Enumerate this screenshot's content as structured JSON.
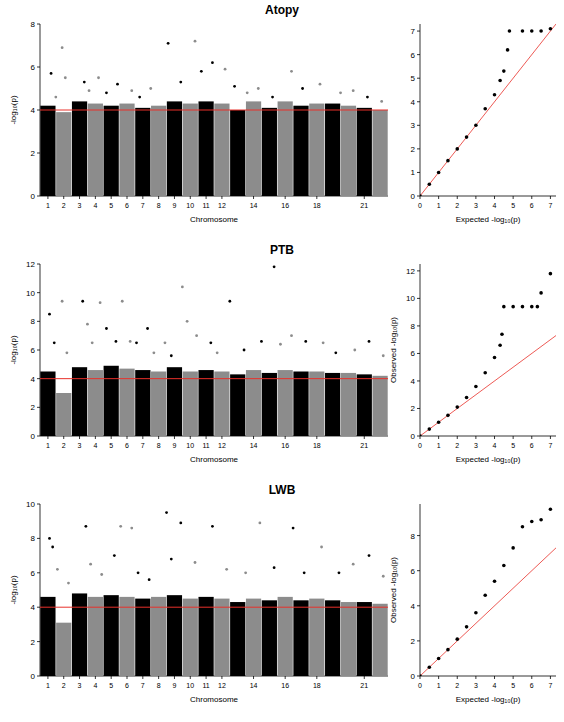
{
  "chart_data": [
    {
      "type": "manhattan",
      "title": "Atopy",
      "x_label": "Chromosome",
      "y_label": "-log₁₀(p)",
      "categories": [
        "1",
        "2",
        "3",
        "4",
        "5",
        "6",
        "7",
        "8",
        "9",
        "10",
        "11",
        "12",
        null,
        "14",
        null,
        "16",
        null,
        "18",
        null,
        null,
        "21",
        null
      ],
      "colors": [
        "#000000",
        "#8c8c8c",
        "#000000",
        "#8c8c8c",
        "#000000",
        "#8c8c8c",
        "#000000",
        "#8c8c8c",
        "#000000",
        "#8c8c8c",
        "#000000",
        "#8c8c8c",
        "#000000",
        "#8c8c8c",
        "#000000",
        "#8c8c8c",
        "#000000",
        "#8c8c8c",
        "#000000",
        "#8c8c8c",
        "#000000",
        "#8c8c8c"
      ],
      "band_top": [
        4.2,
        3.9,
        4.4,
        4.3,
        4.2,
        4.3,
        4.1,
        4.2,
        4.4,
        4.3,
        4.4,
        4.3,
        4.0,
        4.4,
        4.1,
        4.4,
        4.2,
        4.3,
        4.3,
        4.2,
        4.1,
        4.0
      ],
      "points": {
        "x": [
          1.2,
          1.5,
          1.9,
          2.1,
          3.3,
          3.6,
          4.2,
          4.7,
          5.4,
          6.3,
          6.8,
          7.5,
          8.6,
          9.4,
          10.3,
          10.7,
          11.4,
          12.2,
          12.8,
          13.6,
          14.3,
          15.2,
          16.4,
          17.1,
          18.2,
          19.5,
          20.3,
          21.2,
          22.1
        ],
        "y": [
          5.7,
          4.6,
          6.9,
          5.5,
          5.3,
          4.9,
          5.5,
          4.8,
          5.2,
          4.9,
          4.6,
          5.0,
          7.1,
          5.3,
          7.2,
          5.8,
          6.2,
          5.9,
          5.1,
          4.8,
          5.0,
          4.6,
          5.8,
          5.0,
          5.2,
          4.8,
          4.9,
          4.6,
          4.4
        ]
      },
      "threshold": 4,
      "xlim": [
        0.5,
        22.5
      ],
      "ylim": [
        0,
        8
      ],
      "yticks": [
        0,
        2,
        4,
        6,
        8
      ]
    },
    {
      "type": "qq",
      "x_label": "Expected -log₁₀(p)",
      "color": "#000000",
      "points": {
        "x": [
          0,
          0.5,
          1,
          1.5,
          2,
          2.5,
          3,
          3.5,
          4,
          4.3,
          4.5,
          4.7,
          4.8,
          5.5,
          6,
          6.5,
          7
        ],
        "y": [
          0,
          0.5,
          1,
          1.5,
          2,
          2.5,
          3,
          3.7,
          4.3,
          4.9,
          5.3,
          6.2,
          7.0,
          7.0,
          7.0,
          7.0,
          7.1
        ]
      },
      "xlim": [
        0,
        7.3
      ],
      "ylim": [
        0,
        7.3
      ],
      "xticks": [
        0,
        1,
        2,
        3,
        4,
        5,
        6,
        7
      ],
      "yticks": [
        0,
        1,
        2,
        3,
        4,
        5,
        6,
        7
      ]
    },
    {
      "type": "manhattan",
      "title": "PTB",
      "x_label": "Chromosome",
      "y_label": "-log₁₀(p)",
      "categories": [
        "1",
        "2",
        "3",
        "4",
        "5",
        "6",
        "7",
        "8",
        "9",
        "10",
        "11",
        "12",
        null,
        "14",
        null,
        "16",
        null,
        "18",
        null,
        null,
        "21",
        null
      ],
      "colors": [
        "#000000",
        "#8c8c8c",
        "#000000",
        "#8c8c8c",
        "#000000",
        "#8c8c8c",
        "#000000",
        "#8c8c8c",
        "#000000",
        "#8c8c8c",
        "#000000",
        "#8c8c8c",
        "#000000",
        "#8c8c8c",
        "#000000",
        "#8c8c8c",
        "#000000",
        "#8c8c8c",
        "#000000",
        "#8c8c8c",
        "#000000",
        "#8c8c8c"
      ],
      "band_top": [
        4.5,
        3.0,
        4.8,
        4.6,
        4.9,
        4.7,
        4.6,
        4.5,
        4.8,
        4.5,
        4.6,
        4.5,
        4.3,
        4.6,
        4.4,
        4.6,
        4.5,
        4.5,
        4.4,
        4.4,
        4.3,
        4.2
      ],
      "points": {
        "x": [
          1.1,
          1.4,
          1.9,
          2.2,
          3.2,
          3.5,
          3.8,
          4.3,
          4.7,
          5.3,
          5.7,
          6.2,
          6.6,
          7.3,
          7.7,
          8.4,
          8.8,
          9.5,
          9.8,
          10.4,
          11.3,
          11.7,
          12.5,
          13.4,
          14.5,
          15.3,
          15.7,
          16.4,
          17.3,
          18.4,
          19.2,
          20.4,
          21.3,
          22.2
        ],
        "y": [
          8.5,
          6.5,
          9.4,
          5.8,
          9.4,
          7.8,
          6.5,
          9.3,
          7.5,
          6.6,
          9.4,
          6.6,
          6.5,
          7.5,
          5.8,
          6.5,
          5.6,
          10.4,
          8.0,
          7.0,
          6.5,
          5.8,
          9.4,
          6.0,
          6.6,
          11.8,
          6.4,
          7.0,
          6.6,
          6.5,
          5.8,
          6.0,
          6.6,
          5.6
        ]
      },
      "threshold": 4,
      "xlim": [
        0.5,
        22.5
      ],
      "ylim": [
        0,
        12
      ],
      "yticks": [
        0,
        2,
        4,
        6,
        8,
        10,
        12
      ]
    },
    {
      "type": "qq",
      "x_label": "Expected -log₁₀(p)",
      "y_label": "Observed -log₁₀(p)",
      "color": "#000000",
      "points": {
        "x": [
          0,
          0.5,
          1,
          1.5,
          2,
          2.5,
          3,
          3.5,
          4,
          4.3,
          4.4,
          4.5,
          5,
          5.5,
          6,
          6.3,
          6.5,
          7
        ],
        "y": [
          0,
          0.5,
          1,
          1.5,
          2.1,
          2.8,
          3.6,
          4.6,
          5.7,
          6.6,
          7.4,
          9.4,
          9.4,
          9.4,
          9.4,
          9.4,
          10.4,
          11.8
        ]
      },
      "xlim": [
        0,
        7.3
      ],
      "ylim": [
        0,
        12.5
      ],
      "xticks": [
        0,
        1,
        2,
        3,
        4,
        5,
        6,
        7
      ],
      "yticks": [
        0,
        2,
        4,
        6,
        8,
        10,
        12
      ]
    },
    {
      "type": "manhattan",
      "title": "LWB",
      "x_label": "Chromosome",
      "y_label": "-log₁₀(p)",
      "categories": [
        "1",
        "2",
        "3",
        "4",
        "5",
        "6",
        "7",
        "8",
        "9",
        "10",
        "11",
        "12",
        null,
        "14",
        null,
        "16",
        null,
        "18",
        null,
        null,
        "21",
        null
      ],
      "colors": [
        "#000000",
        "#8c8c8c",
        "#000000",
        "#8c8c8c",
        "#000000",
        "#8c8c8c",
        "#000000",
        "#8c8c8c",
        "#000000",
        "#8c8c8c",
        "#000000",
        "#8c8c8c",
        "#000000",
        "#8c8c8c",
        "#000000",
        "#8c8c8c",
        "#000000",
        "#8c8c8c",
        "#000000",
        "#8c8c8c",
        "#000000",
        "#8c8c8c"
      ],
      "band_top": [
        4.6,
        3.1,
        4.8,
        4.6,
        4.7,
        4.6,
        4.5,
        4.6,
        4.7,
        4.5,
        4.6,
        4.5,
        4.3,
        4.5,
        4.4,
        4.6,
        4.4,
        4.5,
        4.4,
        4.3,
        4.3,
        4.2
      ],
      "points": {
        "x": [
          1.1,
          1.3,
          1.6,
          2.3,
          3.4,
          3.7,
          4.4,
          5.2,
          5.6,
          6.3,
          6.7,
          7.4,
          8.5,
          8.8,
          9.4,
          10.3,
          11.4,
          12.3,
          13.5,
          14.4,
          15.3,
          16.5,
          17.2,
          18.3,
          19.4,
          20.3,
          21.3,
          22.2
        ],
        "y": [
          8.0,
          7.5,
          6.2,
          5.4,
          8.7,
          6.5,
          5.9,
          7.0,
          8.7,
          8.6,
          6.0,
          5.6,
          9.5,
          6.8,
          8.9,
          6.6,
          8.7,
          6.2,
          6.0,
          8.9,
          6.3,
          8.6,
          6.0,
          7.5,
          6.0,
          6.5,
          7.0,
          5.8
        ]
      },
      "threshold": 4,
      "xlim": [
        0.5,
        22.5
      ],
      "ylim": [
        0,
        10
      ],
      "yticks": [
        0,
        2,
        4,
        6,
        8,
        10
      ]
    },
    {
      "type": "qq",
      "x_label": "Expected -log₁₀(p)",
      "y_label": "Observed -log₁₀(p)",
      "color": "#000000",
      "points": {
        "x": [
          0,
          0.5,
          1,
          1.5,
          2,
          2.5,
          3,
          3.5,
          4,
          4.5,
          5,
          5.5,
          6,
          6.5,
          7
        ],
        "y": [
          0,
          0.5,
          1,
          1.5,
          2.1,
          2.8,
          3.6,
          4.6,
          5.4,
          6.3,
          7.3,
          8.5,
          8.8,
          8.9,
          9.5
        ]
      },
      "xlim": [
        0,
        7.3
      ],
      "ylim": [
        0,
        9.8
      ],
      "xticks": [
        0,
        1,
        2,
        3,
        4,
        5,
        6,
        7
      ],
      "yticks": [
        0,
        2,
        4,
        6,
        8
      ]
    }
  ]
}
